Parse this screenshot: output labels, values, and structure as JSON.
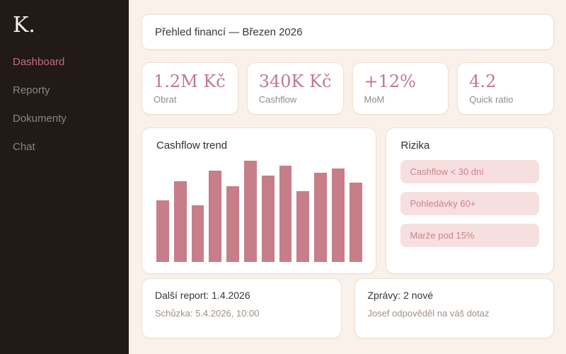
{
  "sidebar": {
    "logo": "K.",
    "items": [
      {
        "label": "Dashboard",
        "active": true
      },
      {
        "label": "Reporty",
        "active": false
      },
      {
        "label": "Dokumenty",
        "active": false
      },
      {
        "label": "Chat",
        "active": false
      }
    ]
  },
  "header": {
    "title": "Přehled financí — Březen 2026"
  },
  "stats": [
    {
      "value": "1.2M Kč",
      "label": "Obrat"
    },
    {
      "value": "340K Kč",
      "label": "Cashflow"
    },
    {
      "value": "+12%",
      "label": "MoM"
    },
    {
      "value": "4.2",
      "label": "Quick ratio"
    }
  ],
  "chart_data": {
    "type": "bar",
    "title": "Cashflow trend",
    "values": [
      61,
      80,
      56,
      90,
      75,
      100,
      85,
      95,
      70,
      88,
      92,
      78
    ],
    "categories": [
      "",
      "",
      "",
      "",
      "",
      "",
      "",
      "",
      "",
      "",
      "",
      ""
    ],
    "xlabel": "",
    "ylabel": "",
    "ylim": [
      0,
      100
    ],
    "grid": false,
    "legend": false,
    "bar_color": "#c77e88",
    "note": "values are relative bar heights in percent; no axis tick labels visible"
  },
  "risks": {
    "title": "Rizika",
    "items": [
      "Cashflow < 30 dní",
      "Pohledávky 60+",
      "Marže pod 15%"
    ]
  },
  "notices": [
    {
      "title": "Další report: 1.4.2026",
      "subtitle": "Schůzka: 5.4.2026, 10:00"
    },
    {
      "title": "Zprávy: 2 nové",
      "subtitle": "Josef odpověděl na váš dotaz"
    }
  ],
  "colors": {
    "sidebar_bg": "#211a16",
    "main_bg": "#faf1ea",
    "card_bg": "#ffffff",
    "card_border": "#ebe1d5",
    "accent_pink": "#c46d7d",
    "stat_value_pink": "#c1798b",
    "bar_pink": "#c77e88",
    "pill_bg": "#f7dfe0",
    "pill_text": "#c9848f",
    "muted_text": "#a39086"
  }
}
